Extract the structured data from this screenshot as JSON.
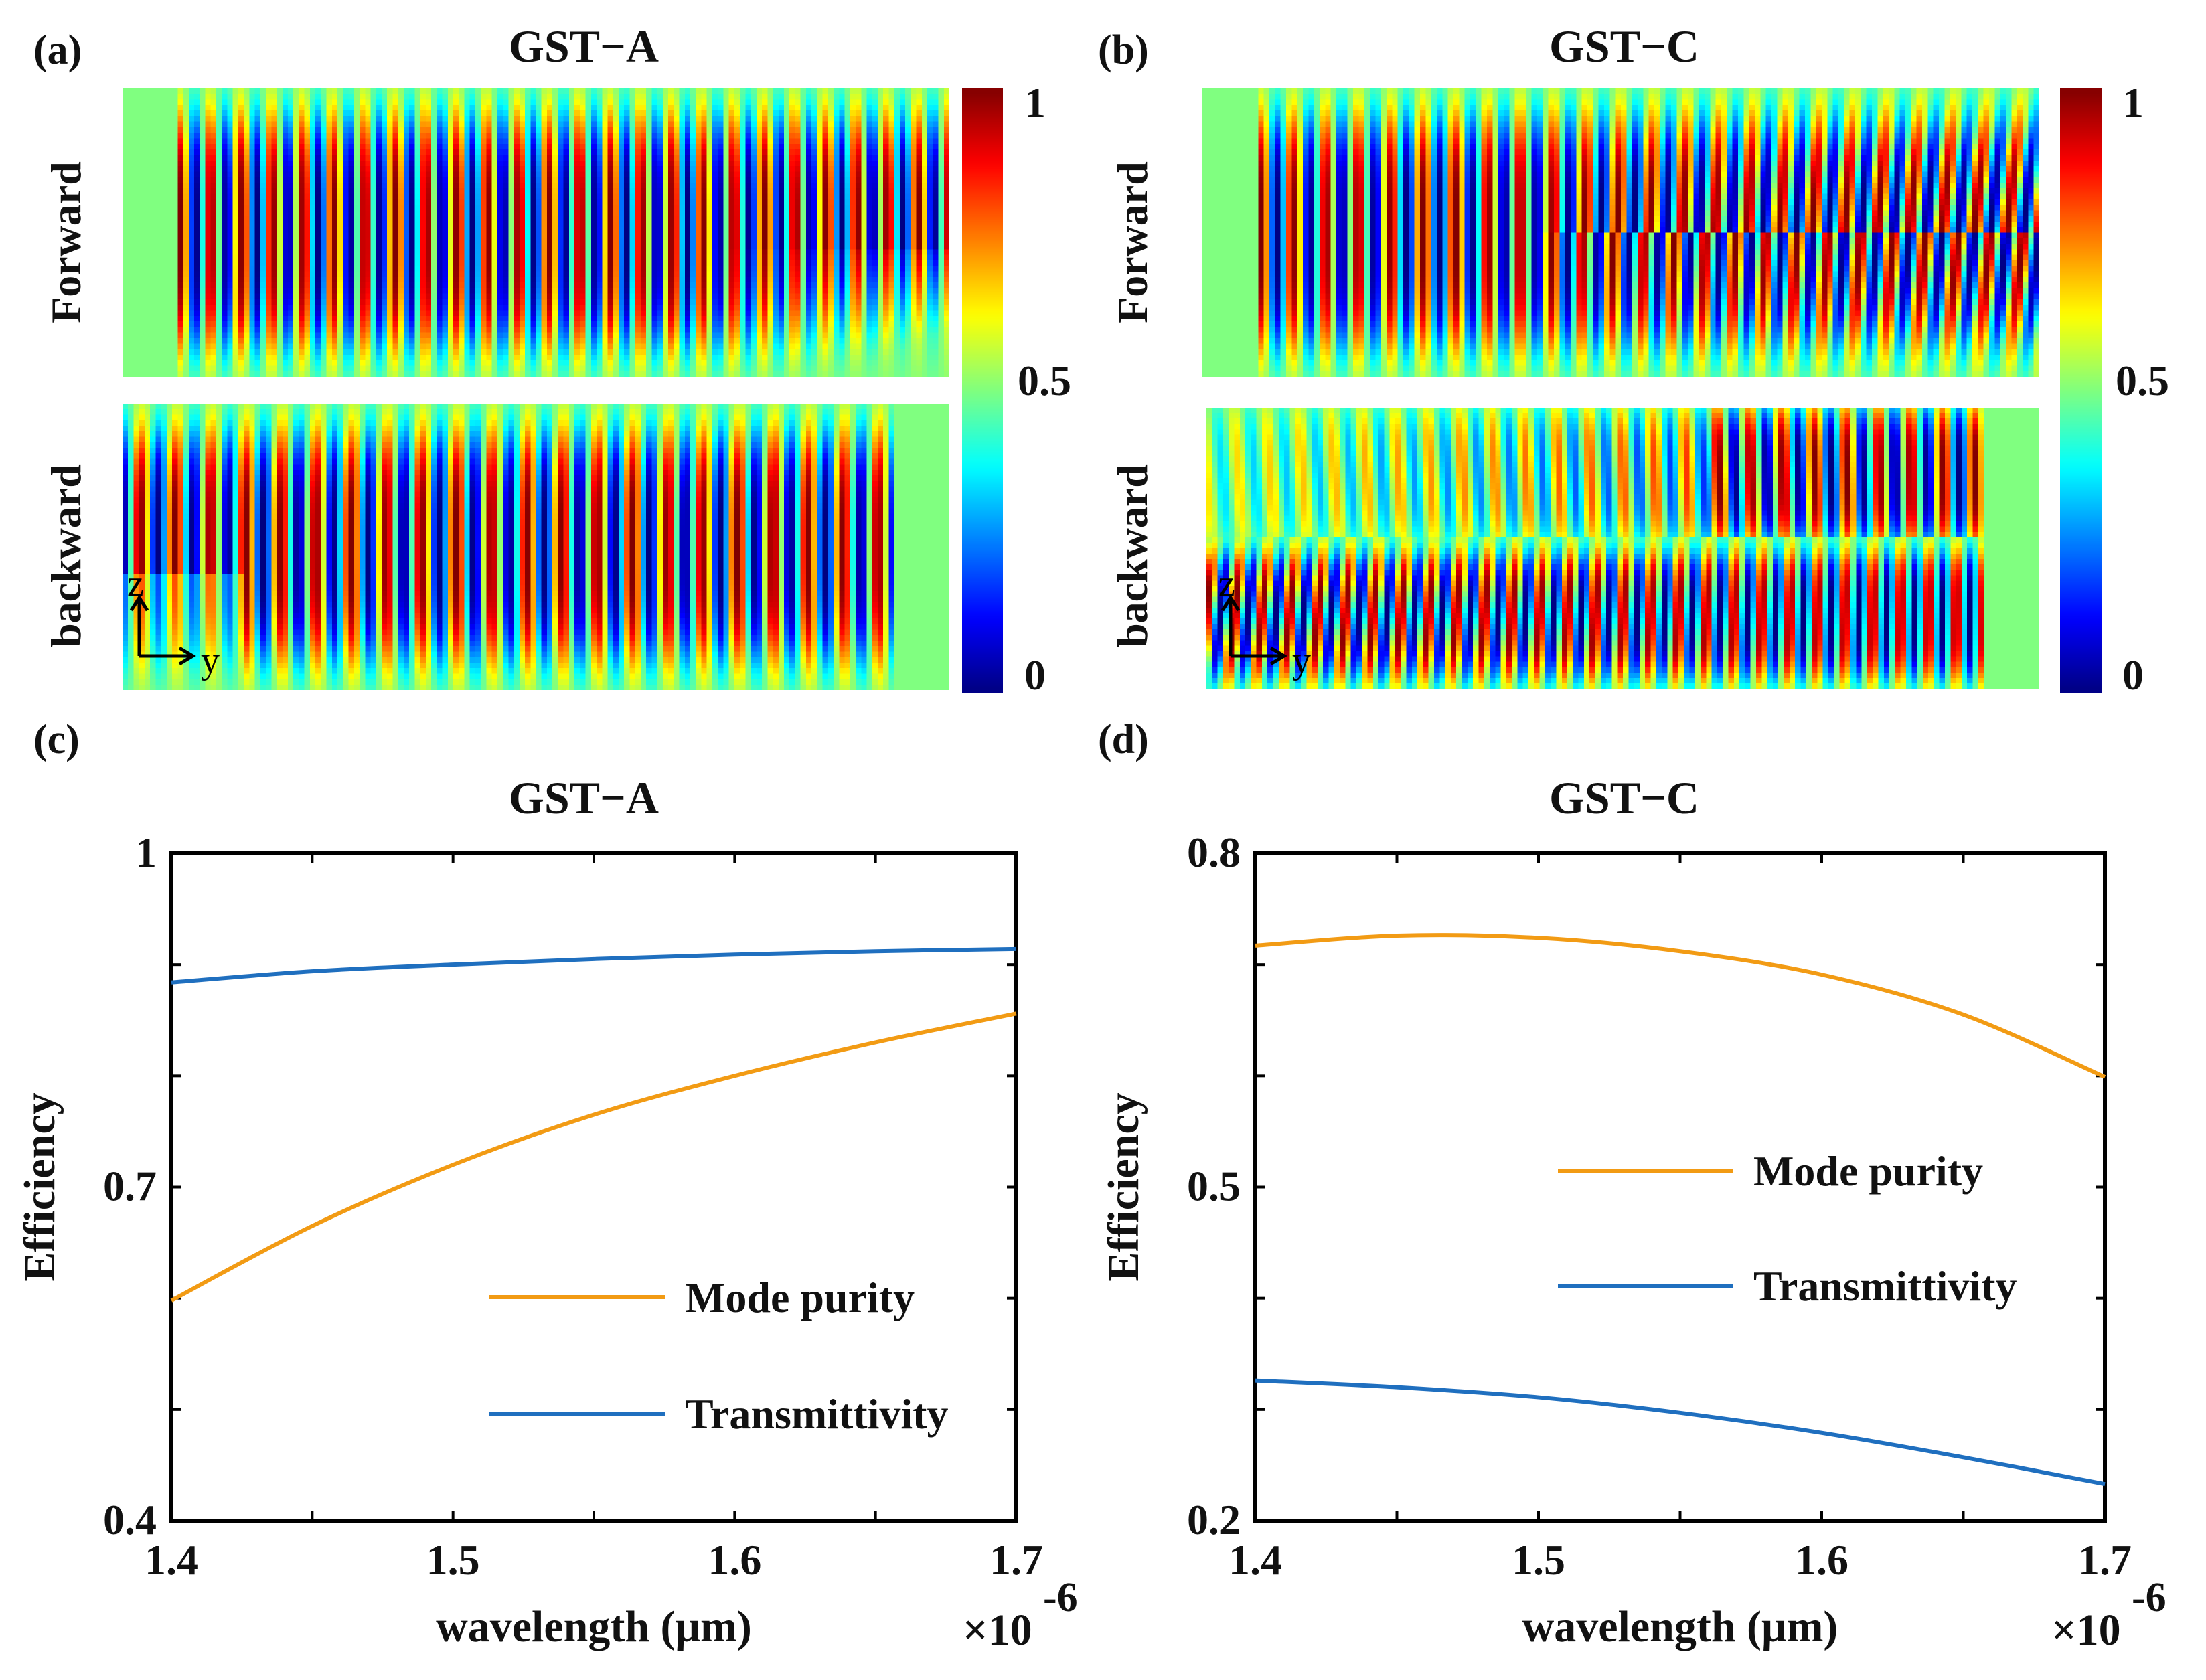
{
  "panels": {
    "a": {
      "label": "(a)",
      "title": "GST−A",
      "rows": [
        "Forward",
        "backward"
      ],
      "axis_z": "z",
      "axis_y": "y"
    },
    "b": {
      "label": "(b)",
      "title": "GST−C",
      "rows": [
        "Forward",
        "backward"
      ],
      "axis_z": "z",
      "axis_y": "y"
    },
    "c": {
      "label": "(c)"
    },
    "d": {
      "label": "(d)"
    }
  },
  "colorbar": {
    "ticks": [
      "1",
      "0.5",
      "0"
    ],
    "range": [
      0,
      1
    ],
    "colormap": "jet"
  },
  "colors": {
    "mode_purity": "#F29B14",
    "transmittivity": "#1F6FBF"
  },
  "chart_data": [
    {
      "type": "heatmap",
      "title": "GST−A",
      "rows": [
        "Forward",
        "backward"
      ],
      "colorbar_range": [
        0,
        1
      ],
      "colorbar_ticks": [
        "0",
        "0.5",
        "1"
      ]
    },
    {
      "type": "heatmap",
      "title": "GST−C",
      "rows": [
        "Forward",
        "backward"
      ],
      "colorbar_range": [
        0,
        1
      ],
      "colorbar_ticks": [
        "0",
        "0.5",
        "1"
      ]
    },
    {
      "type": "line",
      "title": "GST−A",
      "xlabel": "wavelength (μm)",
      "ylabel": "Efficiency",
      "x_multiplier": "×10",
      "x_multiplier_exp": "-6",
      "xlim": [
        1.4,
        1.7
      ],
      "ylim": [
        0.4,
        1
      ],
      "xticks": [
        "1.4",
        "1.5",
        "1.6",
        "1.7"
      ],
      "yticks": [
        "0.4",
        "0.7",
        "1"
      ],
      "x": [
        1.4,
        1.45,
        1.5,
        1.55,
        1.6,
        1.65,
        1.7
      ],
      "series": [
        {
          "name": "Mode purity",
          "color": "#F29B14",
          "values": [
            0.598,
            0.665,
            0.72,
            0.765,
            0.8,
            0.83,
            0.856
          ]
        },
        {
          "name": "Transmittivity",
          "color": "#1F6FBF",
          "values": [
            0.884,
            0.894,
            0.9,
            0.905,
            0.909,
            0.912,
            0.914
          ]
        }
      ],
      "legend": "lower-right",
      "grid": false
    },
    {
      "type": "line",
      "title": "GST−C",
      "xlabel": "wavelength (μm)",
      "ylabel": "Efficiency",
      "x_multiplier": "×10",
      "x_multiplier_exp": "-6",
      "xlim": [
        1.4,
        1.7
      ],
      "ylim": [
        0.2,
        0.8
      ],
      "xticks": [
        "1.4",
        "1.5",
        "1.6",
        "1.7"
      ],
      "yticks": [
        "0.2",
        "0.5",
        "0.8"
      ],
      "x": [
        1.4,
        1.45,
        1.5,
        1.55,
        1.6,
        1.65,
        1.7
      ],
      "series": [
        {
          "name": "Mode purity",
          "color": "#F29B14",
          "values": [
            0.717,
            0.726,
            0.724,
            0.712,
            0.691,
            0.655,
            0.599
          ]
        },
        {
          "name": "Transmittivity",
          "color": "#1F6FBF",
          "values": [
            0.326,
            0.32,
            0.311,
            0.297,
            0.279,
            0.257,
            0.233
          ]
        }
      ],
      "legend": "center-right",
      "grid": false
    }
  ]
}
